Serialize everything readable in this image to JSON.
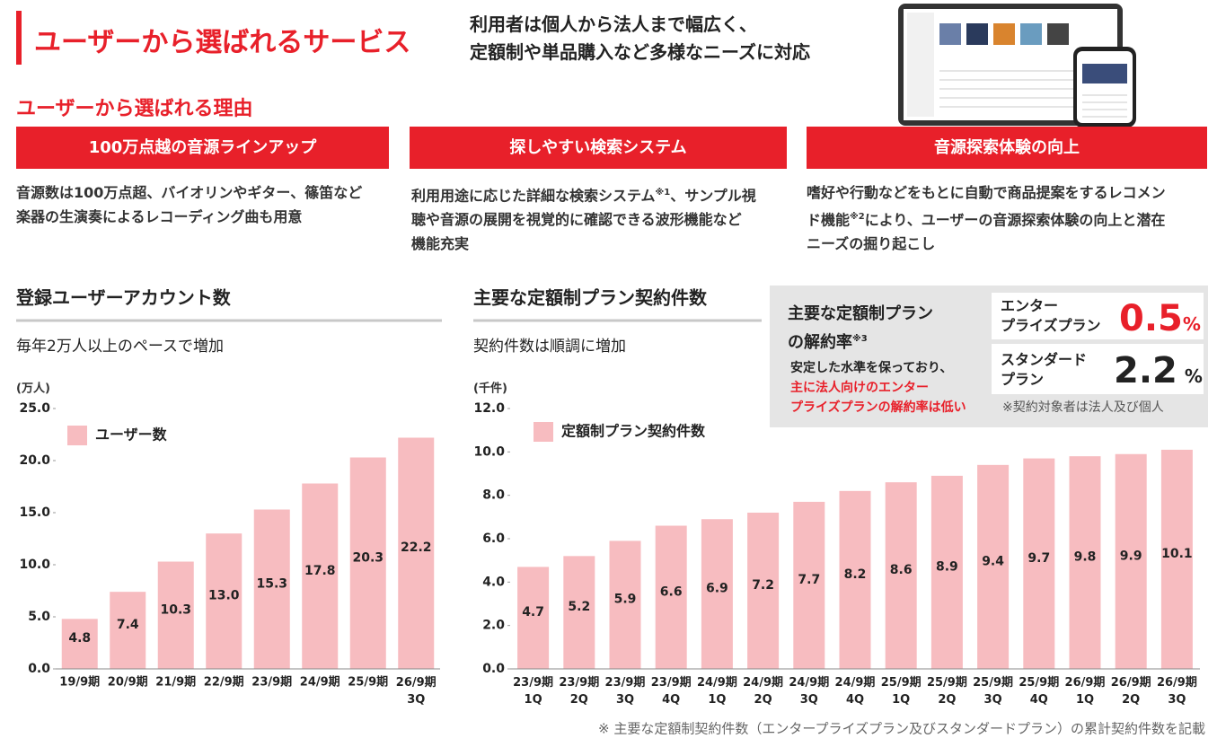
{
  "header": {
    "title": "ユーザーから選ばれるサービス",
    "lead": [
      "利用者は個人から法人まで幅広く、",
      "定額制や単品購入など多様なニーズに対応"
    ]
  },
  "reasons": {
    "title": "ユーザーから選ばれる理由",
    "items": [
      {
        "title": "100万点越の音源ラインアップ",
        "lines": [
          [
            {
              "text": "音源数は100万点超、バイオリンやギター、篠笛など"
            }
          ],
          [
            {
              "text": "楽器の生演奏によるレコーディング曲も用意"
            }
          ]
        ]
      },
      {
        "title": "探しやすい検索システム",
        "lines": [
          [
            {
              "text": "利用用途に応じた詳細な検索システム"
            },
            {
              "sup": "※1"
            },
            {
              "text": "、サンプル視"
            }
          ],
          [
            {
              "text": "聴や音源の展開を視覚的に確認できる波形機能など"
            }
          ],
          [
            {
              "text": "機能充実"
            }
          ]
        ]
      },
      {
        "title": "音源探索体験の向上",
        "lines": [
          [
            {
              "text": "嗜好や行動などをもとに自動で商品提案をするレコメン"
            }
          ],
          [
            {
              "text": "ド機能"
            },
            {
              "sup": "※2"
            },
            {
              "text": "により、ユーザーの音源探索体験の向上と潜在"
            }
          ],
          [
            {
              "text": "ニーズの掘り起こし"
            }
          ]
        ]
      }
    ]
  },
  "churn": {
    "title": [
      "主要な定額制プラン",
      "の解約率"
    ],
    "title_note": "※3",
    "text": "安定した水準を保っており、",
    "highlight": [
      "主に法人向けのエンター",
      "プライズプランの解約率は低い"
    ],
    "plans": [
      {
        "name": [
          "エンター",
          "プライズプラン"
        ],
        "value": 0.5,
        "unit": "%",
        "color": "#e8202a"
      },
      {
        "name": [
          "スタンダード",
          "プラン"
        ],
        "value": 2.2,
        "unit": "%",
        "color": "#222222"
      }
    ],
    "note": "※契約対象者は法人及び個人"
  },
  "chart_data": [
    {
      "type": "bar",
      "title": "登録ユーザーアカウント数",
      "subtitle": "毎年2万人以上のペースで増加",
      "y_label": "(万人)",
      "categories": [
        "19/9期",
        "20/9期",
        "21/9期",
        "22/9期",
        "23/9期",
        "24/9期",
        "25/9期",
        "26/9期\n3Q"
      ],
      "series": [
        {
          "name": "ユーザー数",
          "color": "#f7bcc0",
          "values": [
            4.8,
            7.4,
            10.3,
            13.0,
            15.3,
            17.8,
            20.3,
            22.2
          ],
          "value_labels": [
            "4.8",
            "7.4",
            "10.3",
            "13.0",
            "15.3",
            "17.8",
            "20.3",
            "22.2"
          ]
        }
      ],
      "ylim": [
        0,
        25
      ],
      "yticks": [
        {
          "value": 0,
          "label": "0.0"
        },
        {
          "value": 5,
          "label": "5.0"
        },
        {
          "value": 10,
          "label": "10.0"
        },
        {
          "value": 15,
          "label": "15.0"
        },
        {
          "value": 20,
          "label": "20.0"
        },
        {
          "value": 25,
          "label": "25.0"
        }
      ],
      "grid": false
    },
    {
      "type": "bar",
      "title": "主要な定額制プラン契約件数",
      "subtitle": "契約件数は順調に増加",
      "y_label": "(千件)",
      "categories": [
        "23/9期\n1Q",
        "23/9期\n2Q",
        "23/9期\n3Q",
        "23/9期\n4Q",
        "24/9期\n1Q",
        "24/9期\n2Q",
        "24/9期\n3Q",
        "24/9期\n4Q",
        "25/9期\n1Q",
        "25/9期\n2Q",
        "25/9期\n3Q",
        "25/9期\n4Q",
        "26/9期\n1Q",
        "26/9期\n2Q",
        "26/9期\n3Q"
      ],
      "series": [
        {
          "name": "定額制プラン契約件数",
          "color": "#f7bcc0",
          "values": [
            4.7,
            5.2,
            5.9,
            6.6,
            6.9,
            7.2,
            7.7,
            8.2,
            8.6,
            8.9,
            9.4,
            9.7,
            9.8,
            9.9,
            10.1
          ]
        }
      ],
      "ylim": [
        0,
        12
      ],
      "yticks": [
        {
          "value": 0,
          "label": "0.0"
        },
        {
          "value": 2,
          "label": "2.0"
        },
        {
          "value": 4,
          "label": "4.0"
        },
        {
          "value": 6,
          "label": "6.0"
        },
        {
          "value": 8,
          "label": "8.0"
        },
        {
          "value": 10,
          "label": "10.0"
        },
        {
          "value": 12,
          "label": "12.0"
        }
      ],
      "grid": false,
      "note": "※ 主要な定額制契約件数（エンタープライズプラン及びスタンダードプラン）の累計契約件数を記載"
    }
  ]
}
